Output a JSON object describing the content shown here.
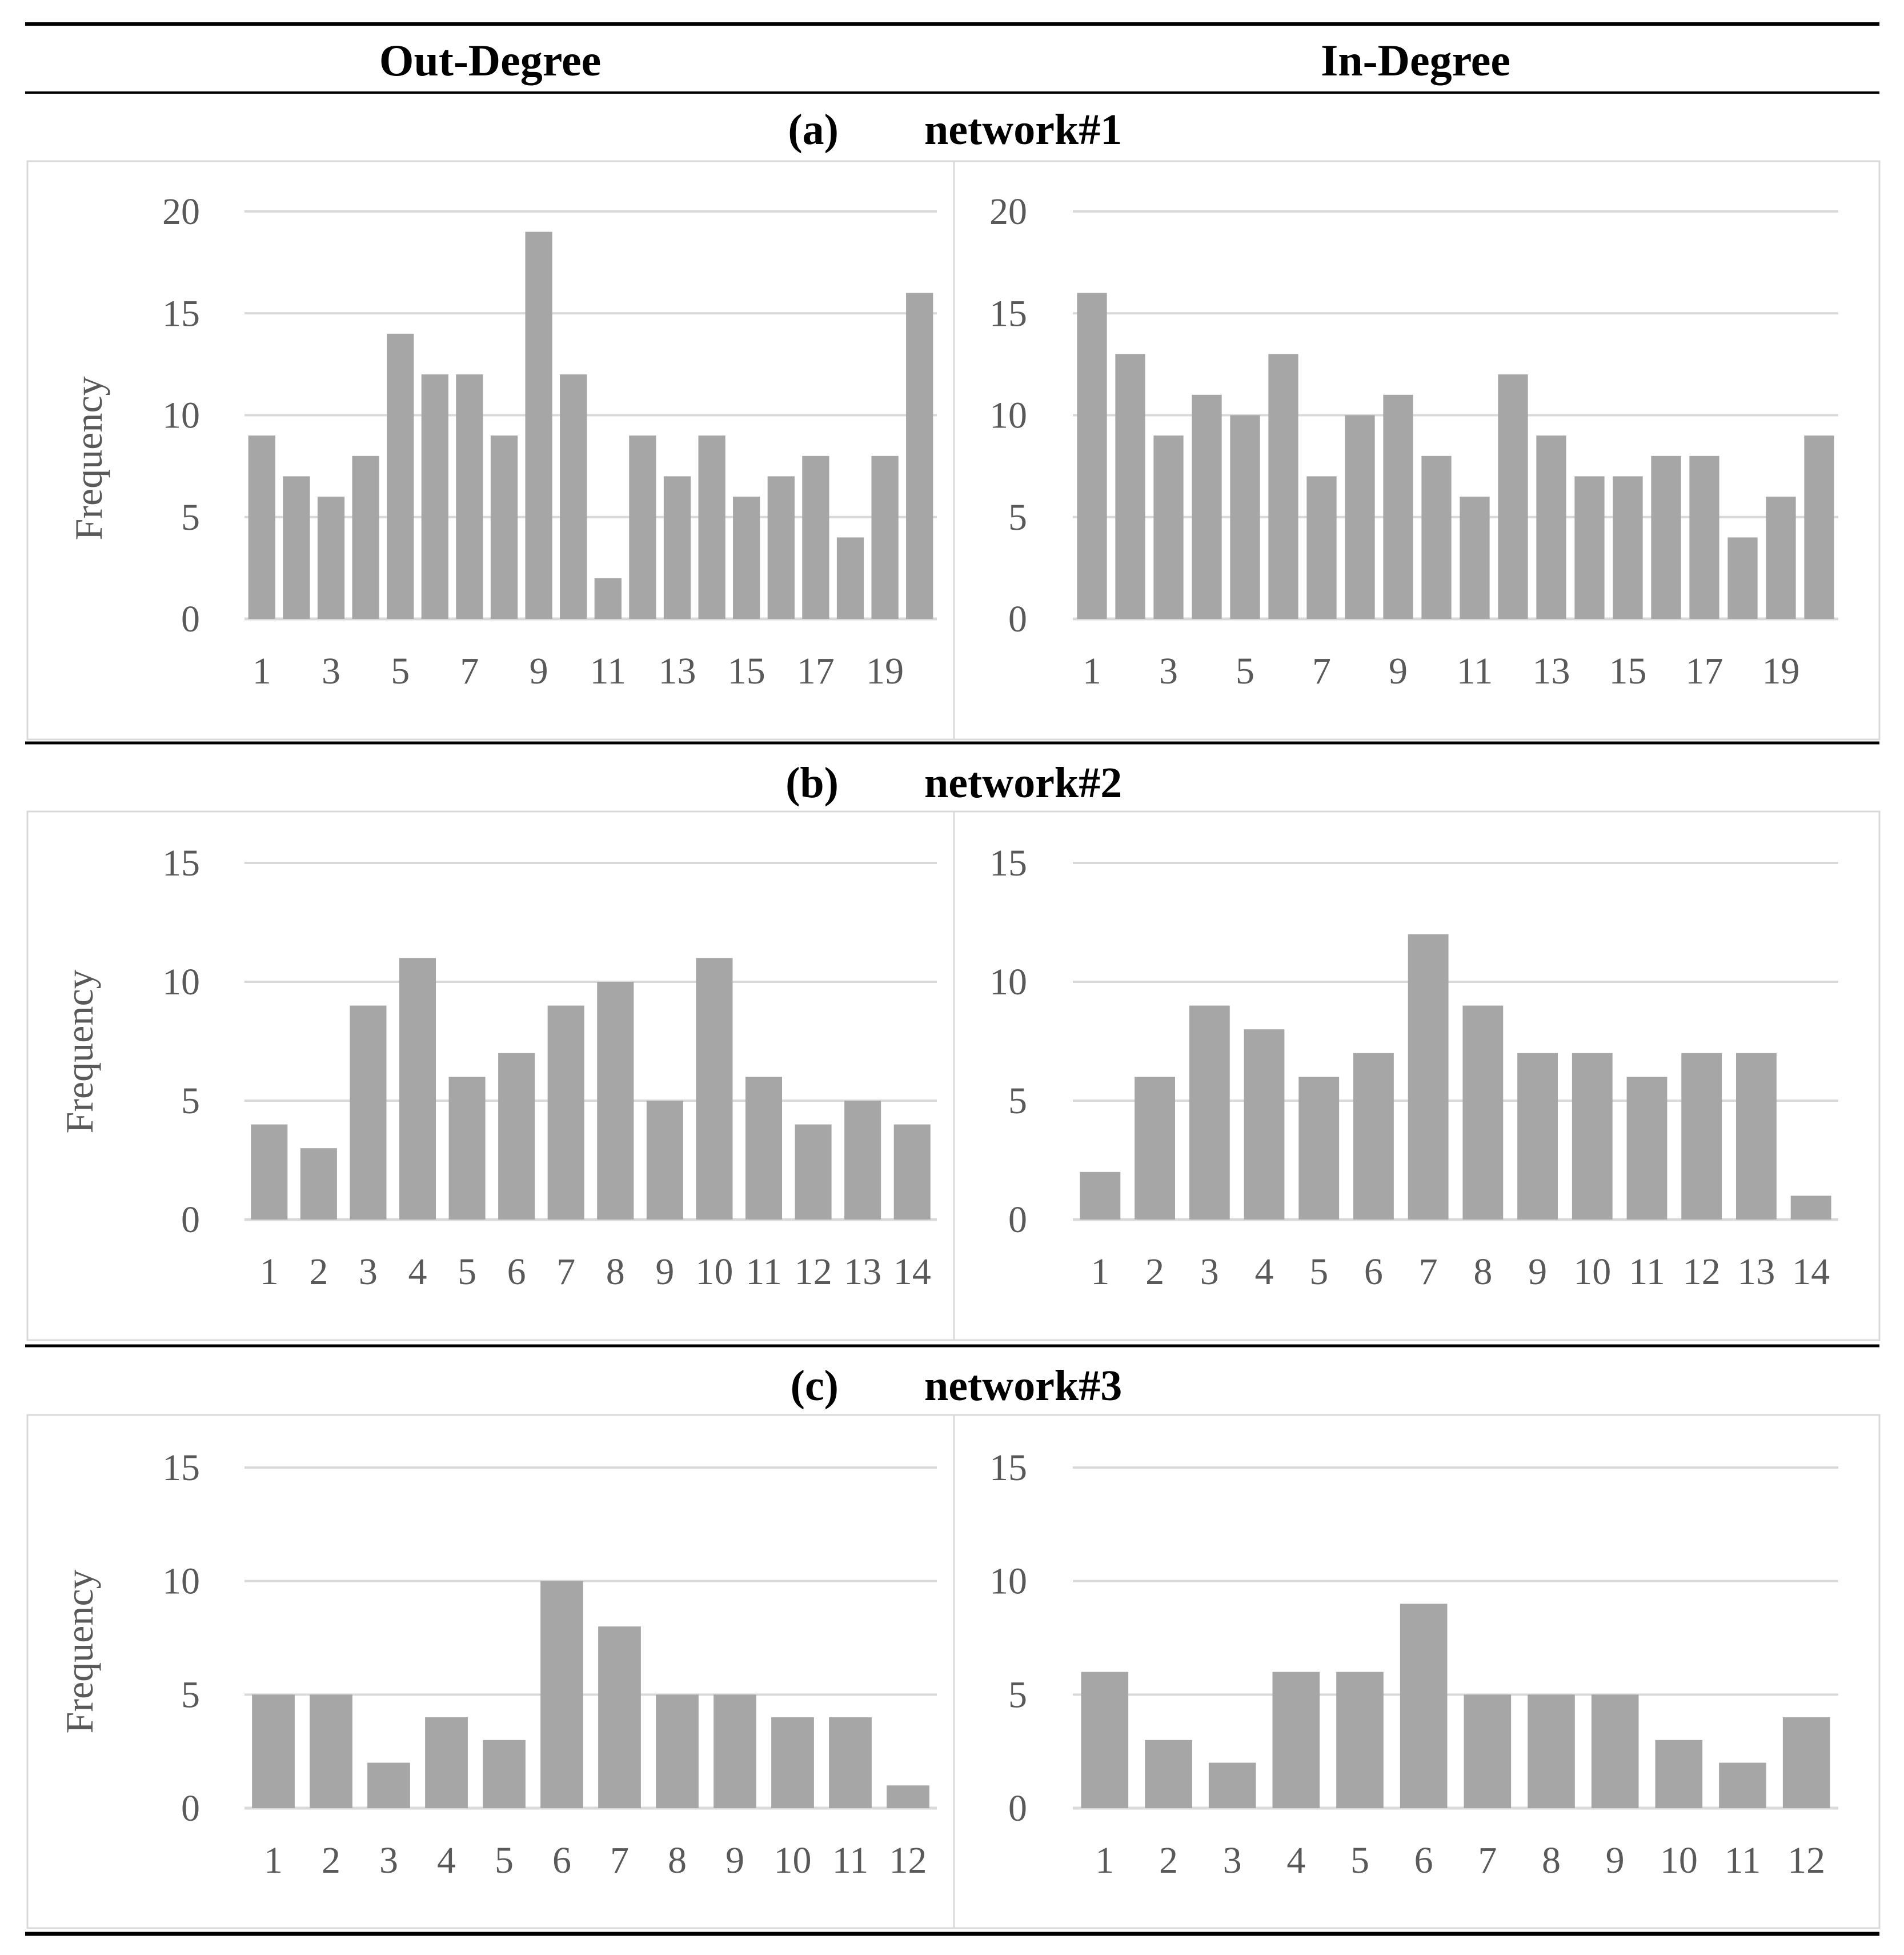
{
  "columns": {
    "left": "Out-Degree",
    "right": "In-Degree"
  },
  "colors": {
    "bar": "#a6a6a6",
    "grid": "#d9d9d9",
    "tick_text": "#595959",
    "rule": "#000000",
    "panel_border": "#d9d9d9"
  },
  "sections": [
    {
      "label": "(a)",
      "title": "network#1",
      "charts": [
        {
          "chart_data": {
            "type": "bar",
            "title": "Out-Degree network#1",
            "xlabel": "",
            "ylabel": "Frequency",
            "ylim": [
              0,
              20
            ],
            "yticks": [
              0,
              5,
              10,
              15,
              20
            ],
            "categories": [
              "1",
              "2",
              "3",
              "4",
              "5",
              "6",
              "7",
              "8",
              "9",
              "10",
              "11",
              "12",
              "13",
              "14",
              "15",
              "16",
              "17",
              "18",
              "19",
              "20"
            ],
            "values": [
              9,
              7,
              6,
              8,
              14,
              12,
              12,
              9,
              19,
              12,
              2,
              9,
              7,
              9,
              6,
              7,
              8,
              4,
              8,
              16
            ],
            "tick_every": 2
          }
        },
        {
          "chart_data": {
            "type": "bar",
            "title": "In-Degree network#1",
            "xlabel": "",
            "ylabel": "",
            "ylim": [
              0,
              20
            ],
            "yticks": [
              0,
              5,
              10,
              15,
              20
            ],
            "categories": [
              "1",
              "2",
              "3",
              "4",
              "5",
              "6",
              "7",
              "8",
              "9",
              "10",
              "11",
              "12",
              "13",
              "14",
              "15",
              "16",
              "17",
              "18",
              "19",
              "20"
            ],
            "values": [
              16,
              13,
              9,
              11,
              10,
              13,
              7,
              10,
              11,
              8,
              6,
              12,
              9,
              7,
              7,
              8,
              8,
              4,
              6,
              9
            ],
            "tick_every": 2
          }
        }
      ]
    },
    {
      "label": "(b)",
      "title": "network#2",
      "charts": [
        {
          "chart_data": {
            "type": "bar",
            "title": "Out-Degree network#2",
            "xlabel": "",
            "ylabel": "Frequency",
            "ylim": [
              0,
              15
            ],
            "yticks": [
              0,
              5,
              10,
              15
            ],
            "categories": [
              "1",
              "2",
              "3",
              "4",
              "5",
              "6",
              "7",
              "8",
              "9",
              "10",
              "11",
              "12",
              "13",
              "14"
            ],
            "values": [
              4,
              3,
              9,
              11,
              6,
              7,
              9,
              10,
              5,
              11,
              6,
              4,
              5,
              4
            ],
            "tick_every": 1
          }
        },
        {
          "chart_data": {
            "type": "bar",
            "title": "In-Degree network#2",
            "xlabel": "",
            "ylabel": "",
            "ylim": [
              0,
              15
            ],
            "yticks": [
              0,
              5,
              10,
              15
            ],
            "categories": [
              "1",
              "2",
              "3",
              "4",
              "5",
              "6",
              "7",
              "8",
              "9",
              "10",
              "11",
              "12",
              "13",
              "14"
            ],
            "values": [
              2,
              6,
              9,
              8,
              6,
              7,
              12,
              9,
              7,
              7,
              6,
              7,
              7,
              1
            ],
            "tick_every": 1
          }
        }
      ]
    },
    {
      "label": "(c)",
      "title": "network#3",
      "charts": [
        {
          "chart_data": {
            "type": "bar",
            "title": "Out-Degree network#3",
            "xlabel": "",
            "ylabel": "Frequency",
            "ylim": [
              0,
              15
            ],
            "yticks": [
              0,
              5,
              10,
              15
            ],
            "categories": [
              "1",
              "2",
              "3",
              "4",
              "5",
              "6",
              "7",
              "8",
              "9",
              "10",
              "11",
              "12"
            ],
            "values": [
              5,
              5,
              2,
              4,
              3,
              10,
              8,
              5,
              5,
              4,
              4,
              1
            ],
            "tick_every": 1
          }
        },
        {
          "chart_data": {
            "type": "bar",
            "title": "In-Degree network#3",
            "xlabel": "",
            "ylabel": "",
            "ylim": [
              0,
              15
            ],
            "yticks": [
              0,
              5,
              10,
              15
            ],
            "categories": [
              "1",
              "2",
              "3",
              "4",
              "5",
              "6",
              "7",
              "8",
              "9",
              "10",
              "11",
              "12"
            ],
            "values": [
              6,
              3,
              2,
              6,
              6,
              9,
              5,
              5,
              5,
              3,
              2,
              4
            ],
            "tick_every": 1
          }
        }
      ]
    }
  ]
}
